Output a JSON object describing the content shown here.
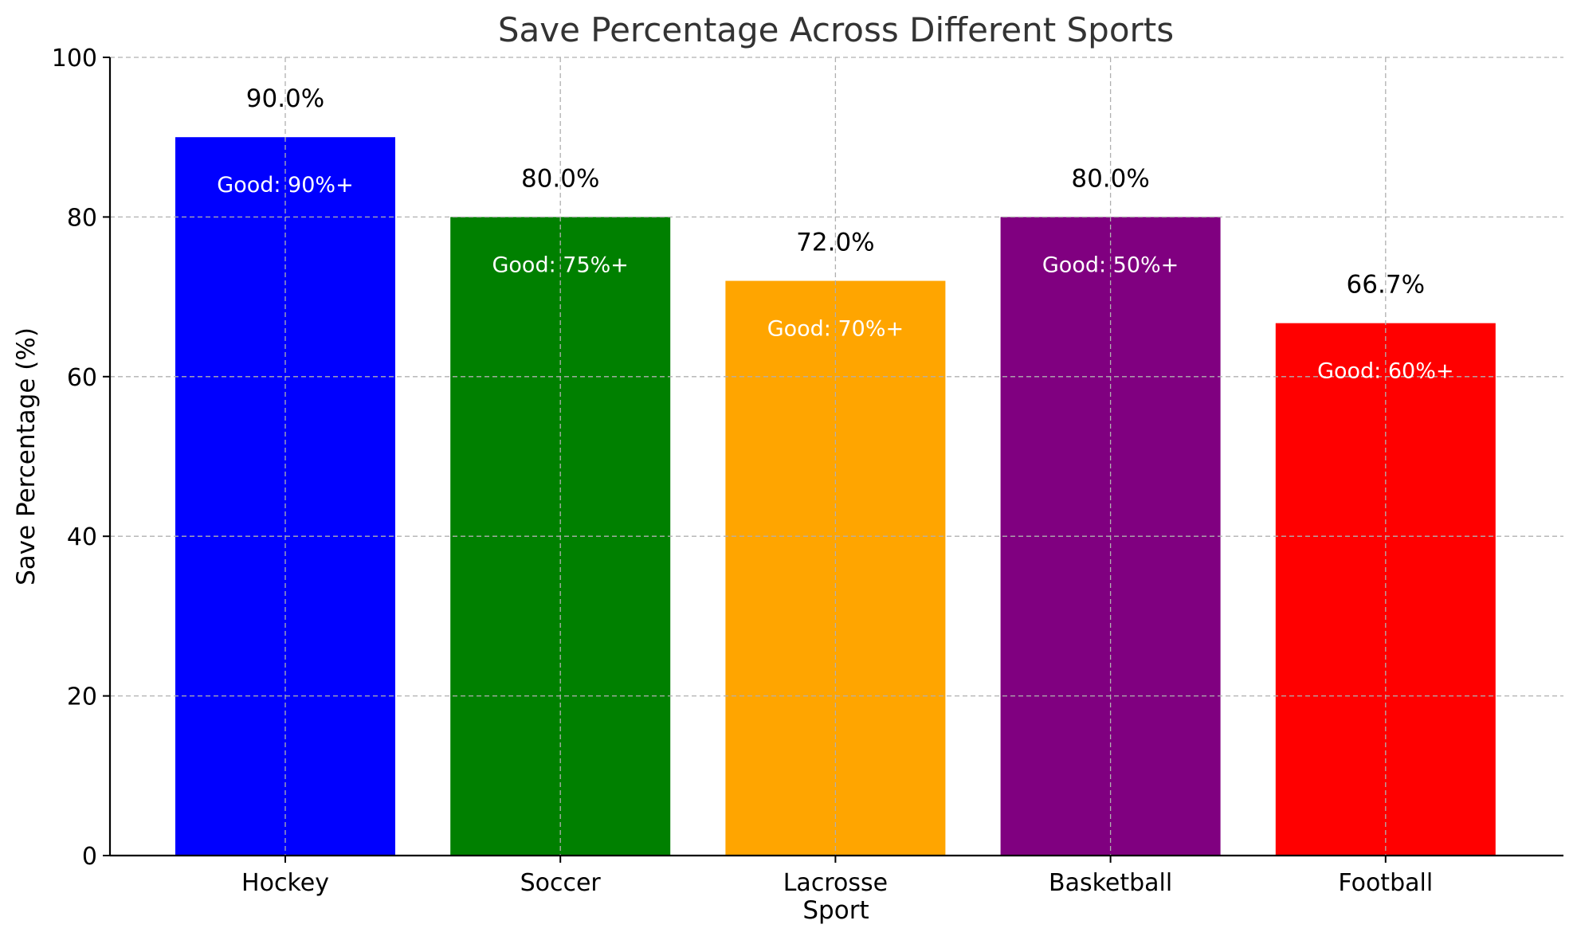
{
  "chart_data": {
    "type": "bar",
    "title": "Save Percentage Across Different Sports",
    "xlabel": "Sport",
    "ylabel": "Save Percentage (%)",
    "ylim": [
      0,
      100
    ],
    "yticks": [
      0,
      20,
      40,
      60,
      80,
      100
    ],
    "grid": true,
    "categories": [
      "Hockey",
      "Soccer",
      "Lacrosse",
      "Basketball",
      "Football"
    ],
    "values": [
      90.0,
      80.0,
      72.0,
      80.0,
      66.7
    ],
    "value_labels": [
      "90.0%",
      "80.0%",
      "72.0%",
      "80.0%",
      "66.7%"
    ],
    "annotations": [
      "Good: 90%+",
      "Good: 75%+",
      "Good: 70%+",
      "Good: 50%+",
      "Good: 60%+"
    ],
    "colors": [
      "#0000ff",
      "#008000",
      "#ffa500",
      "#800080",
      "#ff0000"
    ]
  }
}
